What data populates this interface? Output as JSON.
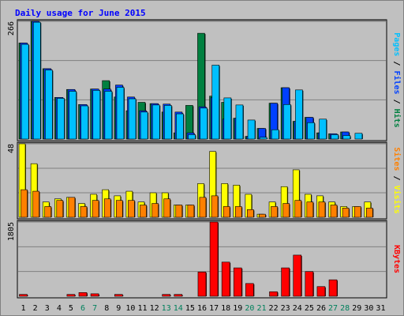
{
  "chart_data": {
    "type": "bar",
    "title": "Daily usage for June 2015",
    "categories": [
      "1",
      "2",
      "3",
      "4",
      "5",
      "6",
      "7",
      "8",
      "9",
      "10",
      "11",
      "12",
      "13",
      "14",
      "15",
      "16",
      "17",
      "18",
      "19",
      "20",
      "21",
      "22",
      "23",
      "24",
      "25",
      "26",
      "27",
      "28",
      "29",
      "30",
      "31"
    ],
    "weekend_days": [
      "6",
      "7",
      "13",
      "14",
      "20",
      "21",
      "27",
      "28"
    ],
    "panels": [
      {
        "name": "top",
        "max_label": "266",
        "ylim": [
          0,
          266
        ],
        "legend": [
          {
            "text": "Pages",
            "color": "#00c0ff"
          },
          {
            "text": " / ",
            "color": "#000000"
          },
          {
            "text": "Files",
            "color": "#0040ff"
          },
          {
            "text": " / ",
            "color": "#000000"
          },
          {
            "text": "Hits",
            "color": "#008040"
          }
        ],
        "series": [
          {
            "name": "Hits",
            "color": "#008040",
            "values": [
              217,
              266,
              159,
              94,
              112,
              78,
              113,
              132,
              95,
              64,
              83,
              80,
              61,
              14,
              76,
              239,
              97,
              83,
              47,
              6,
              24,
              81,
              116,
              40,
              49,
              14,
              12,
              16,
              0,
              0,
              0
            ]
          },
          {
            "name": "Files",
            "color": "#0040ff",
            "values": [
              217,
              266,
              159,
              94,
              112,
              78,
              113,
              113,
              122,
              95,
              64,
              80,
              79,
              61,
              14,
              73,
              94,
              45,
              47,
              6,
              24,
              81,
              116,
              40,
              49,
              14,
              12,
              16,
              0,
              0,
              0
            ]
          },
          {
            "name": "Pages",
            "color": "#00c0ff",
            "values": [
              214,
              264,
              156,
              92,
              108,
              75,
              110,
              108,
              117,
              91,
              61,
              77,
              76,
              57,
              10,
              70,
              167,
              93,
              77,
              43,
              4,
              21,
              78,
              111,
              37,
              45,
              10,
              8,
              13,
              0,
              0
            ]
          }
        ]
      },
      {
        "name": "middle",
        "max_label": "48",
        "ylim": [
          0,
          48
        ],
        "legend": [
          {
            "text": "Sites",
            "color": "#ff8000"
          },
          {
            "text": " / ",
            "color": "#000000"
          },
          {
            "text": "Visits",
            "color": "#ffff00"
          }
        ],
        "series": [
          {
            "name": "Visits",
            "color": "#ffff00",
            "values": [
              48,
              35,
              10,
              12,
              13,
              9,
              15,
              18,
              14,
              17,
              10,
              16,
              16,
              8,
              8,
              22,
              43,
              22,
              21,
              15,
              2,
              10,
              20,
              31,
              15,
              14,
              10,
              7,
              7,
              10,
              0
            ]
          },
          {
            "name": "Sites",
            "color": "#ff8000",
            "values": [
              18,
              17,
              7,
              11,
              13,
              7,
              11,
              12,
              11,
              11,
              8,
              9,
              12,
              8,
              8,
              13,
              14,
              7,
              7,
              5,
              2,
              7,
              9,
              11,
              10,
              10,
              8,
              6,
              7,
              6,
              0
            ]
          }
        ]
      },
      {
        "name": "bottom",
        "max_label": "1805",
        "ylim": [
          0,
          1805
        ],
        "legend": [
          {
            "text": "KBytes",
            "color": "#ff0000"
          }
        ],
        "series": [
          {
            "name": "KBytes",
            "color": "#ff0000",
            "values": [
              45,
              0,
              0,
              0,
              45,
              90,
              60,
              0,
              45,
              0,
              0,
              0,
              45,
              45,
              0,
              590,
              1805,
              830,
              690,
              310,
              0,
              110,
              690,
              1000,
              600,
              235,
              400,
              0,
              0,
              0,
              0
            ]
          }
        ]
      }
    ]
  }
}
